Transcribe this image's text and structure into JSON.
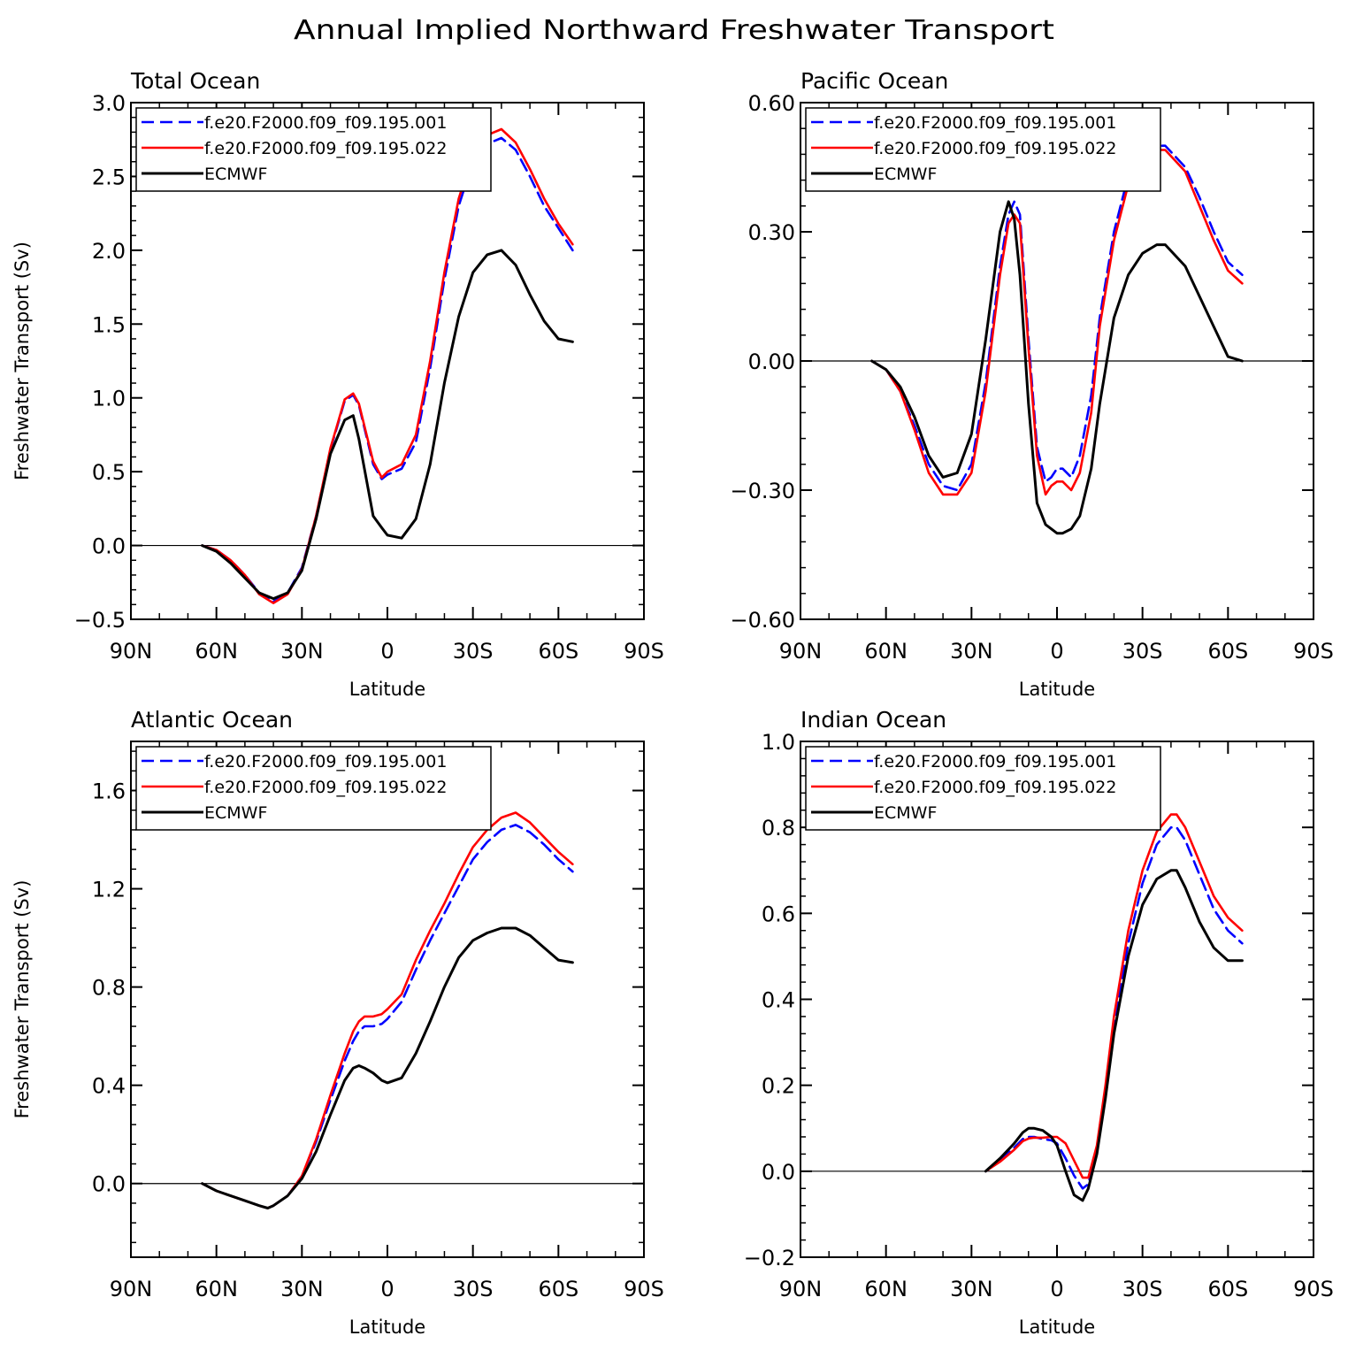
{
  "title": "Annual Implied Northward Freshwater Transport",
  "legend_labels": [
    "f.e20.F2000.f09_f09.195.001",
    "f.e20.F2000.f09_f09.195.022",
    "ECMWF"
  ],
  "series_colors": {
    "f.e20.F2000.f09_f09.195.001": "#0000ff",
    "f.e20.F2000.f09_f09.195.022": "#ff0000",
    "ECMWF": "#000000"
  },
  "x_ticks": [
    "90N",
    "60N",
    "30N",
    "0",
    "30S",
    "60S",
    "90S"
  ],
  "chart_data": [
    {
      "type": "line",
      "title": "Total Ocean",
      "xlabel": "Latitude",
      "ylabel": "Freshwater Transport (Sv)",
      "xlim": [
        90,
        -90
      ],
      "ylim": [
        -0.5,
        3.0
      ],
      "yticks": [
        "-0.5",
        "0.0",
        "0.5",
        "1.0",
        "1.5",
        "2.0",
        "2.5",
        "3.0"
      ],
      "legend": "top-left",
      "series": [
        {
          "name": "f.e20.F2000.f09_f09.195.001",
          "style": "dashed",
          "x": [
            65,
            60,
            55,
            50,
            45,
            40,
            35,
            30,
            25,
            20,
            15,
            12,
            10,
            5,
            2,
            0,
            -5,
            -10,
            -15,
            -20,
            -25,
            -30,
            -35,
            -40,
            -45,
            -50,
            -55,
            -60,
            -65
          ],
          "y": [
            0.0,
            -0.03,
            -0.1,
            -0.2,
            -0.32,
            -0.38,
            -0.32,
            -0.15,
            0.2,
            0.65,
            0.98,
            1.02,
            0.95,
            0.55,
            0.45,
            0.48,
            0.52,
            0.7,
            1.2,
            1.8,
            2.3,
            2.6,
            2.72,
            2.76,
            2.68,
            2.5,
            2.3,
            2.15,
            2.0
          ]
        },
        {
          "name": "f.e20.F2000.f09_f09.195.022",
          "style": "solid",
          "x": [
            65,
            60,
            55,
            50,
            45,
            40,
            35,
            30,
            25,
            20,
            15,
            12,
            10,
            5,
            2,
            0,
            -5,
            -10,
            -15,
            -20,
            -25,
            -30,
            -35,
            -40,
            -45,
            -50,
            -55,
            -60,
            -65
          ],
          "y": [
            0.0,
            -0.03,
            -0.1,
            -0.2,
            -0.33,
            -0.39,
            -0.33,
            -0.16,
            0.2,
            0.66,
            0.99,
            1.03,
            0.96,
            0.57,
            0.46,
            0.5,
            0.55,
            0.75,
            1.25,
            1.85,
            2.35,
            2.65,
            2.78,
            2.82,
            2.73,
            2.55,
            2.35,
            2.18,
            2.04
          ]
        },
        {
          "name": "ECMWF",
          "style": "solid",
          "x": [
            65,
            60,
            55,
            50,
            45,
            40,
            35,
            30,
            25,
            20,
            15,
            12,
            10,
            5,
            2,
            0,
            -5,
            -10,
            -15,
            -20,
            -25,
            -30,
            -35,
            -40,
            -45,
            -50,
            -55,
            -60,
            -65
          ],
          "y": [
            0.0,
            -0.04,
            -0.12,
            -0.22,
            -0.32,
            -0.36,
            -0.32,
            -0.17,
            0.18,
            0.62,
            0.85,
            0.88,
            0.72,
            0.2,
            0.12,
            0.07,
            0.05,
            0.18,
            0.55,
            1.1,
            1.55,
            1.85,
            1.97,
            2.0,
            1.9,
            1.7,
            1.52,
            1.4,
            1.38
          ]
        }
      ]
    },
    {
      "type": "line",
      "title": "Pacific Ocean",
      "xlabel": "Latitude",
      "ylabel": "",
      "xlim": [
        90,
        -90
      ],
      "ylim": [
        -0.6,
        0.6
      ],
      "yticks": [
        "-0.60",
        "-0.30",
        "0.00",
        "0.30",
        "0.60"
      ],
      "legend": "top-left",
      "series": [
        {
          "name": "f.e20.F2000.f09_f09.195.001",
          "style": "dashed",
          "x": [
            65,
            60,
            55,
            50,
            45,
            40,
            35,
            30,
            25,
            20,
            17,
            15,
            13,
            10,
            7,
            4,
            2,
            0,
            -2,
            -5,
            -8,
            -12,
            -15,
            -20,
            -25,
            -30,
            -35,
            -38,
            -45,
            -50,
            -55,
            -60,
            -65
          ],
          "y": [
            0.0,
            -0.02,
            -0.07,
            -0.15,
            -0.24,
            -0.29,
            -0.3,
            -0.24,
            -0.05,
            0.22,
            0.34,
            0.37,
            0.34,
            0.05,
            -0.2,
            -0.28,
            -0.27,
            -0.25,
            -0.25,
            -0.27,
            -0.22,
            -0.08,
            0.1,
            0.3,
            0.43,
            0.49,
            0.5,
            0.5,
            0.45,
            0.38,
            0.3,
            0.23,
            0.2
          ]
        },
        {
          "name": "f.e20.F2000.f09_f09.195.022",
          "style": "solid",
          "x": [
            65,
            60,
            55,
            50,
            45,
            40,
            35,
            30,
            25,
            20,
            17,
            15,
            13,
            10,
            7,
            4,
            2,
            0,
            -2,
            -5,
            -8,
            -12,
            -15,
            -20,
            -25,
            -30,
            -35,
            -38,
            -45,
            -50,
            -55,
            -60,
            -65
          ],
          "y": [
            0.0,
            -0.02,
            -0.07,
            -0.16,
            -0.26,
            -0.31,
            -0.31,
            -0.26,
            -0.07,
            0.2,
            0.32,
            0.34,
            0.32,
            0.03,
            -0.22,
            -0.31,
            -0.29,
            -0.28,
            -0.28,
            -0.3,
            -0.26,
            -0.12,
            0.08,
            0.28,
            0.41,
            0.48,
            0.49,
            0.49,
            0.44,
            0.36,
            0.28,
            0.21,
            0.18
          ]
        },
        {
          "name": "ECMWF",
          "style": "solid",
          "x": [
            65,
            60,
            55,
            50,
            45,
            40,
            35,
            30,
            25,
            20,
            17,
            15,
            13,
            10,
            7,
            4,
            2,
            0,
            -2,
            -5,
            -8,
            -12,
            -15,
            -20,
            -25,
            -30,
            -35,
            -38,
            -45,
            -50,
            -55,
            -60,
            -65
          ],
          "y": [
            0.0,
            -0.02,
            -0.06,
            -0.13,
            -0.22,
            -0.27,
            -0.26,
            -0.17,
            0.05,
            0.3,
            0.37,
            0.33,
            0.2,
            -0.1,
            -0.33,
            -0.38,
            -0.39,
            -0.4,
            -0.4,
            -0.39,
            -0.36,
            -0.25,
            -0.1,
            0.1,
            0.2,
            0.25,
            0.27,
            0.27,
            0.22,
            0.15,
            0.08,
            0.01,
            0.0
          ]
        }
      ]
    },
    {
      "type": "line",
      "title": "Atlantic Ocean",
      "xlabel": "Latitude",
      "ylabel": "Freshwater Transport (Sv)",
      "xlim": [
        90,
        -90
      ],
      "ylim": [
        -0.3,
        1.8
      ],
      "yticks": [
        "0.0",
        "0.4",
        "0.8",
        "1.2",
        "1.6"
      ],
      "legend": "top-left",
      "series": [
        {
          "name": "f.e20.F2000.f09_f09.195.001",
          "style": "dashed",
          "x": [
            65,
            60,
            55,
            50,
            45,
            42,
            40,
            35,
            30,
            25,
            20,
            15,
            12,
            10,
            8,
            5,
            2,
            0,
            -5,
            -10,
            -15,
            -20,
            -25,
            -30,
            -35,
            -40,
            -45,
            -50,
            -55,
            -60,
            -65
          ],
          "y": [
            0.0,
            -0.03,
            -0.05,
            -0.07,
            -0.09,
            -0.1,
            -0.09,
            -0.05,
            0.03,
            0.17,
            0.34,
            0.5,
            0.58,
            0.62,
            0.64,
            0.64,
            0.65,
            0.67,
            0.74,
            0.87,
            0.99,
            1.1,
            1.21,
            1.32,
            1.39,
            1.44,
            1.46,
            1.43,
            1.38,
            1.32,
            1.27
          ]
        },
        {
          "name": "f.e20.F2000.f09_f09.195.022",
          "style": "solid",
          "x": [
            65,
            60,
            55,
            50,
            45,
            42,
            40,
            35,
            30,
            25,
            20,
            15,
            12,
            10,
            8,
            5,
            2,
            0,
            -5,
            -10,
            -15,
            -20,
            -25,
            -30,
            -35,
            -40,
            -45,
            -50,
            -55,
            -60,
            -65
          ],
          "y": [
            0.0,
            -0.03,
            -0.05,
            -0.07,
            -0.09,
            -0.1,
            -0.09,
            -0.05,
            0.03,
            0.18,
            0.36,
            0.53,
            0.62,
            0.66,
            0.68,
            0.68,
            0.69,
            0.71,
            0.77,
            0.91,
            1.03,
            1.14,
            1.26,
            1.37,
            1.44,
            1.49,
            1.51,
            1.47,
            1.41,
            1.35,
            1.3
          ]
        },
        {
          "name": "ECMWF",
          "style": "solid",
          "x": [
            65,
            60,
            55,
            50,
            45,
            42,
            40,
            35,
            30,
            25,
            20,
            15,
            12,
            10,
            8,
            5,
            2,
            0,
            -5,
            -10,
            -15,
            -20,
            -25,
            -30,
            -35,
            -40,
            -45,
            -50,
            -55,
            -60,
            -65
          ],
          "y": [
            0.0,
            -0.03,
            -0.05,
            -0.07,
            -0.09,
            -0.1,
            -0.09,
            -0.05,
            0.02,
            0.13,
            0.28,
            0.42,
            0.47,
            0.48,
            0.47,
            0.45,
            0.42,
            0.41,
            0.43,
            0.53,
            0.66,
            0.8,
            0.92,
            0.99,
            1.02,
            1.04,
            1.04,
            1.01,
            0.96,
            0.91,
            0.9
          ]
        }
      ]
    },
    {
      "type": "line",
      "title": "Indian Ocean",
      "xlabel": "Latitude",
      "ylabel": "",
      "xlim": [
        90,
        -90
      ],
      "ylim": [
        -0.2,
        1.0
      ],
      "yticks": [
        "-0.2",
        "0.0",
        "0.2",
        "0.4",
        "0.6",
        "0.8",
        "1.0"
      ],
      "legend": "top-left",
      "series": [
        {
          "name": "f.e20.F2000.f09_f09.195.001",
          "style": "dashed",
          "x": [
            25,
            20,
            15,
            12,
            10,
            8,
            5,
            2,
            0,
            -3,
            -6,
            -9,
            -11,
            -14,
            -17,
            -20,
            -25,
            -30,
            -35,
            -40,
            -42,
            -45,
            -50,
            -55,
            -60,
            -65
          ],
          "y": [
            0.0,
            0.025,
            0.055,
            0.075,
            0.08,
            0.08,
            0.075,
            0.072,
            0.065,
            0.03,
            -0.01,
            -0.04,
            -0.03,
            0.05,
            0.18,
            0.34,
            0.53,
            0.67,
            0.76,
            0.8,
            0.8,
            0.77,
            0.69,
            0.61,
            0.56,
            0.53
          ]
        },
        {
          "name": "f.e20.F2000.f09_f09.195.022",
          "style": "solid",
          "x": [
            25,
            20,
            15,
            12,
            10,
            8,
            5,
            2,
            0,
            -3,
            -6,
            -9,
            -11,
            -14,
            -17,
            -20,
            -25,
            -30,
            -35,
            -40,
            -42,
            -45,
            -50,
            -55,
            -60,
            -65
          ],
          "y": [
            0.0,
            0.022,
            0.05,
            0.07,
            0.076,
            0.078,
            0.078,
            0.08,
            0.08,
            0.065,
            0.025,
            -0.015,
            -0.015,
            0.06,
            0.2,
            0.36,
            0.56,
            0.7,
            0.79,
            0.83,
            0.83,
            0.8,
            0.72,
            0.64,
            0.59,
            0.56
          ]
        },
        {
          "name": "ECMWF",
          "style": "solid",
          "x": [
            25,
            20,
            15,
            12,
            10,
            8,
            5,
            2,
            0,
            -3,
            -6,
            -9,
            -11,
            -14,
            -17,
            -20,
            -25,
            -30,
            -35,
            -40,
            -42,
            -45,
            -50,
            -55,
            -60,
            -65
          ],
          "y": [
            0.0,
            0.03,
            0.065,
            0.09,
            0.1,
            0.1,
            0.095,
            0.08,
            0.06,
            0.0,
            -0.055,
            -0.068,
            -0.04,
            0.04,
            0.17,
            0.32,
            0.5,
            0.62,
            0.68,
            0.7,
            0.7,
            0.66,
            0.58,
            0.52,
            0.49,
            0.49
          ]
        }
      ]
    }
  ]
}
